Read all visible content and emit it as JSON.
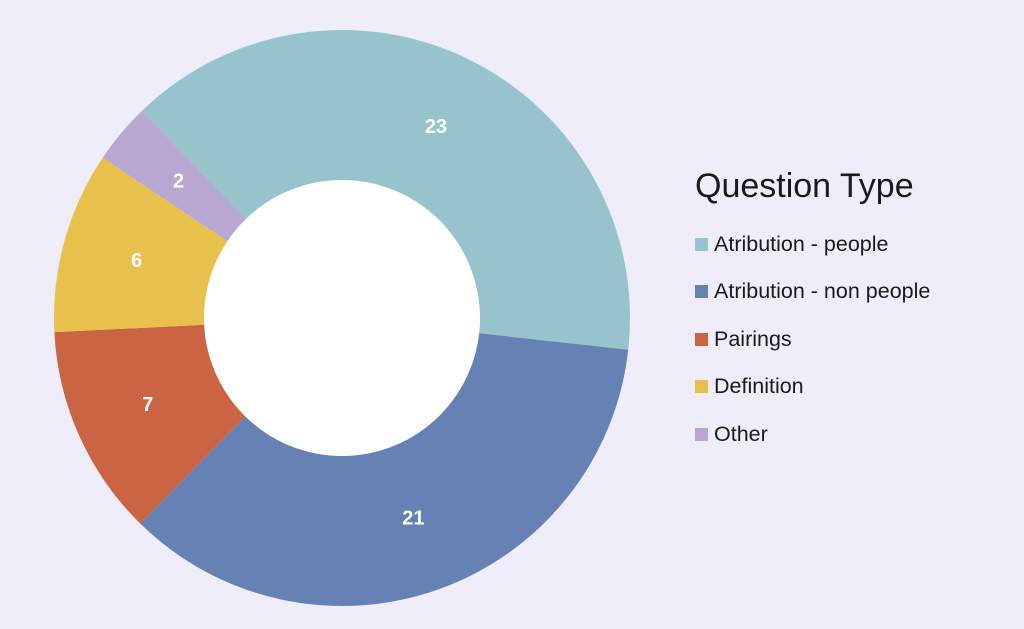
{
  "chart_data": {
    "type": "pie",
    "donut": true,
    "legend_title": "Question Type",
    "legend_position": "right",
    "slices": [
      {
        "label": "Atribution - people",
        "value": 23,
        "color": "#97c4cc"
      },
      {
        "label": "Atribution - non people",
        "value": 21,
        "color": "#6682b4"
      },
      {
        "label": "Pairings",
        "value": 7,
        "color": "#cb6442"
      },
      {
        "label": "Definition",
        "value": 6,
        "color": "#e8c04c"
      },
      {
        "label": "Other",
        "value": 2,
        "color": "#b7a7d1"
      }
    ]
  },
  "colors": {
    "background": "#efedf9",
    "hole": "#ffffff"
  }
}
